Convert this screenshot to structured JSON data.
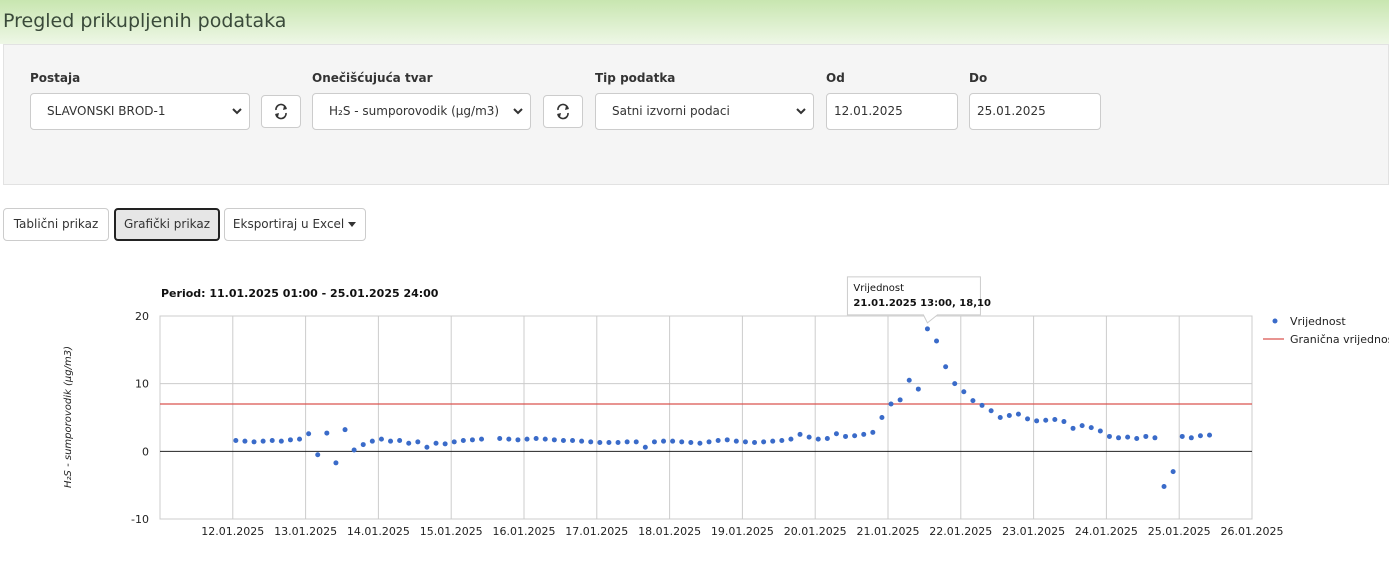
{
  "header": {
    "title": "Pregled prikupljenih podataka"
  },
  "filters": [
    {
      "label": "Postaja",
      "value": "SLAVONSKI BROD-1"
    },
    {
      "label": "Onečišćujuća tvar",
      "value": "H₂S - sumporovodik (µg/m3)"
    },
    {
      "label": "Tip podatka",
      "value": "Satni izvorni podaci"
    },
    {
      "label": "Od",
      "value": "12.01.2025"
    },
    {
      "label": "Do",
      "value": "25.01.2025"
    }
  ],
  "tabs": [
    "Tablični prikaz",
    "Grafički prikaz",
    "Eksportiraj u Excel"
  ],
  "chart_data": {
    "type": "scatter",
    "title": "Period: 11.01.2025 01:00 - 25.01.2025 24:00",
    "y_label": "H₂S - sumporovodik (µg/m3)",
    "x": [
      "12.01.2025 01:00",
      "12.01.2025 04:00",
      "12.01.2025 07:00",
      "12.01.2025 10:00",
      "12.01.2025 13:00",
      "12.01.2025 16:00",
      "12.01.2025 19:00",
      "12.01.2025 22:00",
      "13.01.2025 01:00",
      "13.01.2025 04:00",
      "13.01.2025 07:00",
      "13.01.2025 10:00",
      "13.01.2025 13:00",
      "13.01.2025 16:00",
      "13.01.2025 19:00",
      "13.01.2025 22:00",
      "14.01.2025 01:00",
      "14.01.2025 04:00",
      "14.01.2025 07:00",
      "14.01.2025 10:00",
      "14.01.2025 13:00",
      "14.01.2025 16:00",
      "14.01.2025 19:00",
      "14.01.2025 22:00",
      "15.01.2025 01:00",
      "15.01.2025 04:00",
      "15.01.2025 07:00",
      "15.01.2025 10:00",
      "15.01.2025 13:00",
      "15.01.2025 16:00",
      "15.01.2025 19:00",
      "15.01.2025 22:00",
      "16.01.2025 01:00",
      "16.01.2025 04:00",
      "16.01.2025 07:00",
      "16.01.2025 10:00",
      "16.01.2025 13:00",
      "16.01.2025 16:00",
      "16.01.2025 19:00",
      "16.01.2025 22:00",
      "17.01.2025 01:00",
      "17.01.2025 04:00",
      "17.01.2025 07:00",
      "17.01.2025 10:00",
      "17.01.2025 13:00",
      "17.01.2025 16:00",
      "17.01.2025 19:00",
      "17.01.2025 22:00",
      "18.01.2025 01:00",
      "18.01.2025 04:00",
      "18.01.2025 07:00",
      "18.01.2025 10:00",
      "18.01.2025 13:00",
      "18.01.2025 16:00",
      "18.01.2025 19:00",
      "18.01.2025 22:00",
      "19.01.2025 01:00",
      "19.01.2025 04:00",
      "19.01.2025 07:00",
      "19.01.2025 10:00",
      "19.01.2025 13:00",
      "19.01.2025 16:00",
      "19.01.2025 19:00",
      "19.01.2025 22:00",
      "20.01.2025 01:00",
      "20.01.2025 04:00",
      "20.01.2025 07:00",
      "20.01.2025 10:00",
      "20.01.2025 13:00",
      "20.01.2025 16:00",
      "20.01.2025 19:00",
      "20.01.2025 22:00",
      "21.01.2025 01:00",
      "21.01.2025 04:00",
      "21.01.2025 07:00",
      "21.01.2025 10:00",
      "21.01.2025 13:00",
      "21.01.2025 16:00",
      "21.01.2025 19:00",
      "21.01.2025 22:00",
      "22.01.2025 01:00",
      "22.01.2025 04:00",
      "22.01.2025 07:00",
      "22.01.2025 10:00",
      "22.01.2025 13:00",
      "22.01.2025 16:00",
      "22.01.2025 19:00",
      "22.01.2025 22:00",
      "23.01.2025 01:00",
      "23.01.2025 04:00",
      "23.01.2025 07:00",
      "23.01.2025 10:00",
      "23.01.2025 13:00",
      "23.01.2025 16:00",
      "23.01.2025 19:00",
      "23.01.2025 22:00",
      "24.01.2025 01:00",
      "24.01.2025 04:00",
      "24.01.2025 07:00",
      "24.01.2025 10:00",
      "24.01.2025 13:00",
      "24.01.2025 16:00",
      "24.01.2025 19:00",
      "24.01.2025 22:00",
      "25.01.2025 01:00",
      "25.01.2025 04:00",
      "25.01.2025 07:00",
      "25.01.2025 10:00"
    ],
    "series": [
      {
        "name": "Vrijednost",
        "color": "#3a6bc9",
        "values": [
          1.6,
          1.5,
          1.4,
          1.5,
          1.6,
          1.5,
          1.7,
          1.8,
          2.6,
          -0.5,
          2.7,
          -1.7,
          3.2,
          0.2,
          1.0,
          1.5,
          1.8,
          1.5,
          1.6,
          1.2,
          1.4,
          0.6,
          1.2,
          1.1,
          1.4,
          1.6,
          1.7,
          1.8,
          null,
          1.9,
          1.8,
          1.7,
          1.8,
          1.9,
          1.8,
          1.7,
          1.6,
          1.6,
          1.5,
          1.4,
          1.3,
          1.3,
          1.3,
          1.4,
          1.4,
          0.6,
          1.4,
          1.5,
          1.5,
          1.4,
          1.3,
          1.2,
          1.4,
          1.6,
          1.7,
          1.5,
          1.4,
          1.3,
          1.4,
          1.5,
          1.6,
          1.8,
          2.5,
          2.1,
          1.8,
          1.9,
          2.6,
          2.2,
          2.3,
          2.5,
          2.8,
          5.0,
          7.0,
          7.6,
          10.5,
          9.2,
          18.1,
          16.3,
          12.5,
          10.0,
          8.8,
          7.5,
          6.8,
          6.0,
          5.0,
          5.3,
          5.5,
          4.8,
          4.5,
          4.6,
          4.7,
          4.4,
          3.4,
          3.8,
          3.5,
          3.0,
          2.2,
          2.0,
          2.1,
          1.9,
          2.2,
          2.0,
          -5.2,
          -3.0,
          2.2,
          2.0,
          2.3,
          2.4
        ]
      }
    ],
    "threshold": {
      "name": "Granična vrijednost",
      "color": "#d9534f",
      "value": 7
    },
    "xlim": [
      "11.01.2025",
      "26.01.2025"
    ],
    "xticks": [
      "12.01.2025",
      "13.01.2025",
      "14.01.2025",
      "15.01.2025",
      "16.01.2025",
      "17.01.2025",
      "18.01.2025",
      "19.01.2025",
      "20.01.2025",
      "21.01.2025",
      "22.01.2025",
      "23.01.2025",
      "24.01.2025",
      "25.01.2025",
      "26.01.2025"
    ],
    "ylim": [
      -10,
      20
    ],
    "yticks": [
      -10,
      0,
      10,
      20
    ],
    "grid": true,
    "legend": "right",
    "annotation": {
      "title": "Vrijednost",
      "text": "21.01.2025 13:00, 18,10"
    }
  }
}
